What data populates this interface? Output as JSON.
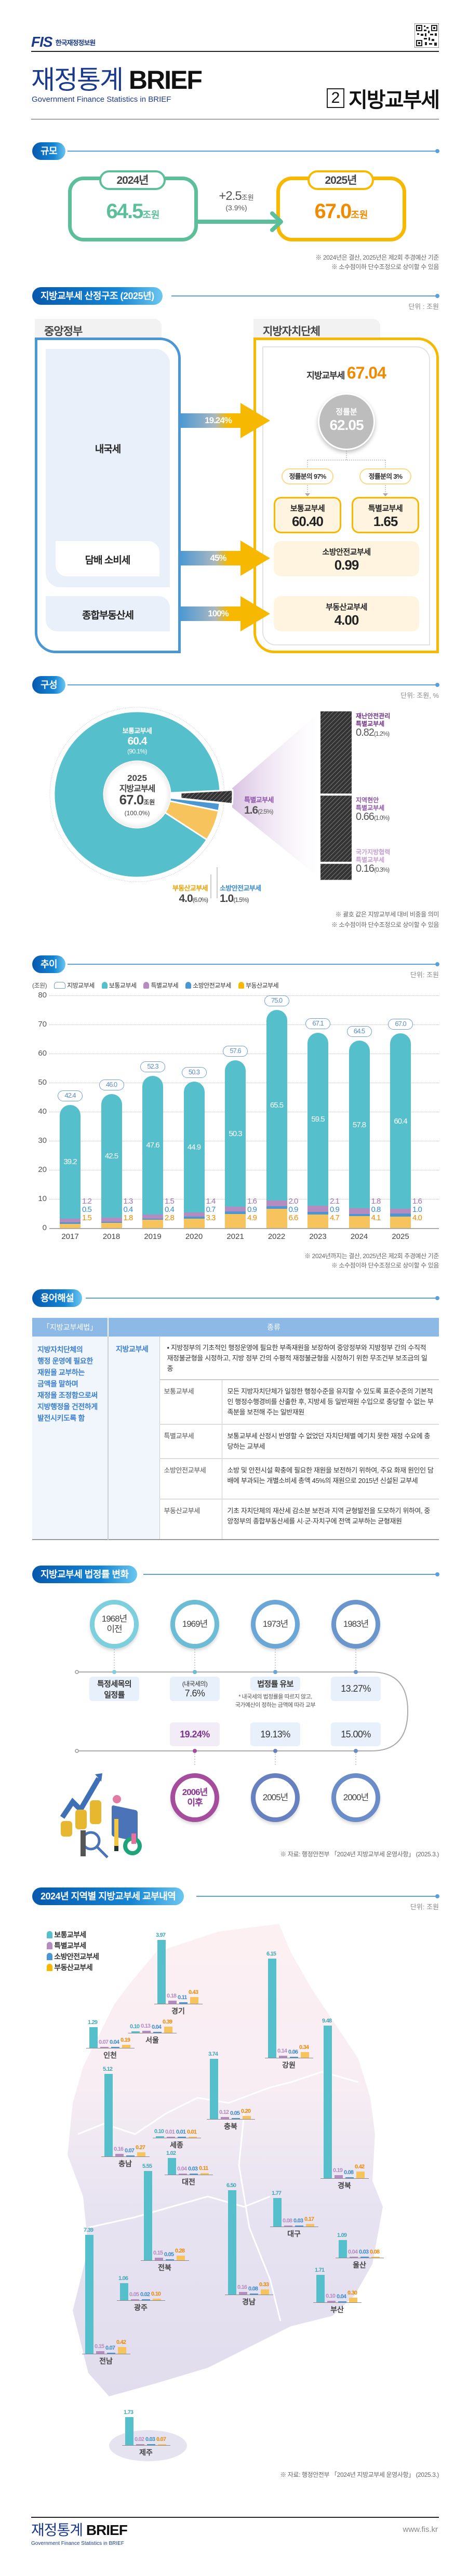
{
  "header": {
    "logo_text": "FIS",
    "org_name": "한국재정정보원",
    "title_kr": "재정통계",
    "title_en": "BRIEF",
    "subtitle": "Government Finance Statistics in BRIEF",
    "issue_no": "2",
    "topic": "지방교부세"
  },
  "scale": {
    "title": "규모",
    "before": {
      "year": "2024년",
      "value": "64.5",
      "unit": "조원"
    },
    "after": {
      "year": "2025년",
      "value": "67.0",
      "unit": "조원"
    },
    "change": "+2.5",
    "change_unit": "조원",
    "change_pct": "(3.9%)",
    "notes": [
      "※ 2024년은 결산, 2025년은 제2회 추경예산 기준",
      "※ 소수점이하 단수조정으로 상이할 수 있음"
    ]
  },
  "structure": {
    "title": "지방교부세 산정구조 (2025년)",
    "unit": "단위 : 조원",
    "central_label": "중앙정부",
    "local_label": "지방자치단체",
    "sources": [
      "내국세",
      "담배 소비세",
      "종합부동산세"
    ],
    "rates": [
      "19.24%",
      "45%",
      "100%"
    ],
    "total_label": "지방교부세",
    "total_value": "67.04",
    "pool_label": "정률분",
    "pool_value": "62.05",
    "splits": [
      "정률분의 97%",
      "정률분의 3%"
    ],
    "boxes": [
      {
        "label": "보통교부세",
        "value": "60.40"
      },
      {
        "label": "특별교부세",
        "value": "1.65"
      },
      {
        "label": "소방안전교부세",
        "value": "0.99"
      },
      {
        "label": "부동산교부세",
        "value": "4.00"
      }
    ]
  },
  "composition": {
    "title": "구성",
    "unit": "단위: 조원, %",
    "center": {
      "year": "2025",
      "label": "지방교부세",
      "value": "67.0",
      "unit": "조원",
      "pct": "(100.0%)"
    },
    "notes": [
      "※ 괄호 값은 지방교부세 대비 비중을 의미",
      "※ 소수점이하 단수조정으로 상이할 수 있음"
    ]
  },
  "trend": {
    "title": "추이",
    "unit": "단위: 조원",
    "notes": [
      "※ 2024년까지는 결산, 2025년은 제2회 추경예산 기준",
      "※ 소수점이하 단수조정으로 상이할 수 있음"
    ]
  },
  "glossary": {
    "title": "용어해설",
    "head_law": "「지방교부세법」",
    "head_kind": "종류",
    "law_text": "지방자치단체의\n행정 운영에 필요한\n재원을 교부하는\n금액을 말하며\n재정을 조정함으로써\n지방행정을 건전하게\n발전시키도록 함",
    "main_name": "지방교부세",
    "main_desc": "• 지방정부의 기초적인 행정운영에 필요한 부족재원을 보장하여 중앙정부와 지방정부 간의 수직적 재정불균형을 시정하고, 지방 정부 간의 수평적 재정불균형을 시정하기 위한 무조건부 보조금의 일종",
    "rows": [
      {
        "name": "보통교부세",
        "desc": "모든 지방자치단체가 일정한 행정수준을 유지할 수 있도록 표준수준의 기본적인 행정수행경비를 산출한 후, 지방세 등 일반재원 수입으로 충당할 수 없는 부족분을 보전해 주는 일반재원"
      },
      {
        "name": "특별교부세",
        "desc": "보통교부세 산정시 반영할 수 없었던 자치단체별 예기치 못한 재정 수요에 충당하는 교부세"
      },
      {
        "name": "소방안전교부세",
        "desc": "소방 및 안전시설 확충에 필요한 재원을 보전하기 위하여, 주요 화재 원인인 담배에 부과되는 개별소비세 총액 45%의 재원으로 2015년 신설된 교부세"
      },
      {
        "name": "부동산교부세",
        "desc": "기초 자치단체의 재산세 감소분 보전과 지역 균형발전을 도모하기 위하여, 중앙정부의 종합부동산세를 시·군·자치구에 전액 교부하는 균형재원"
      }
    ]
  },
  "timeline": {
    "title": "지방교부세 법정률 변화",
    "items": [
      {
        "year": "1968년\n이전",
        "rate": "특정세목의\n일정률"
      },
      {
        "year": "1969년",
        "rate_prefix": "(내국세의)",
        "rate": "7.6%"
      },
      {
        "year": "1973년",
        "rate": "법정률 유보",
        "note": "* 내국세의 법정률을 따르지 않고,\n국가예산이 정하는 금액에 따라 교부"
      },
      {
        "year": "1983년",
        "rate": "13.27%"
      },
      {
        "year": "2000년",
        "rate": "15.00%"
      },
      {
        "year": "2005년",
        "rate": "19.13%"
      },
      {
        "year": "2006년\n이후",
        "rate": "19.24%"
      }
    ],
    "source": "※ 자료: 행정안전부 「2024년 지방교부세 운영사항」 (2025.3.)"
  },
  "regional": {
    "title": "2024년 지역별 지방교부세 교부내역",
    "unit": "단위: 조원",
    "source": "※ 자료: 행정안전부 「2024년 지방교부세 운영사항」 (2025.3.)"
  },
  "colors": {
    "normal": "#55c0cc",
    "special": "#b58cc0",
    "fire": "#4a97d4",
    "property": "#f7c35c",
    "property_text": "#f08a00",
    "green": "#5bbf9a",
    "orange": "#f6b800"
  },
  "chart_data": [
    {
      "type": "bar",
      "stacked": true,
      "yaxis_unit": "(조원)",
      "ylim": [
        0,
        80
      ],
      "yticks": [
        0,
        10,
        20,
        30,
        40,
        50,
        60,
        70,
        80
      ],
      "grid": true,
      "legend_position": "top-left",
      "categories": [
        "2017",
        "2018",
        "2019",
        "2020",
        "2021",
        "2022",
        "2023",
        "2024",
        "2025"
      ],
      "total_name": "지방교부세",
      "totals": [
        42.4,
        46.0,
        52.3,
        50.3,
        57.6,
        75.0,
        67.1,
        64.5,
        67.0
      ],
      "series": [
        {
          "name": "보통교부세",
          "values": [
            39.2,
            42.5,
            47.6,
            44.9,
            50.3,
            65.5,
            59.5,
            57.8,
            60.4
          ]
        },
        {
          "name": "특별교부세",
          "values": [
            1.2,
            1.3,
            1.5,
            1.4,
            1.6,
            2.0,
            2.1,
            1.8,
            1.6
          ]
        },
        {
          "name": "소방안전교부세",
          "values": [
            0.5,
            0.4,
            0.4,
            0.7,
            0.9,
            0.9,
            0.9,
            0.8,
            1.0
          ]
        },
        {
          "name": "부동산교부세",
          "values": [
            1.5,
            1.8,
            2.8,
            3.3,
            4.9,
            6.6,
            4.7,
            4.1,
            4.0
          ]
        }
      ]
    },
    {
      "type": "pie",
      "slices": [
        {
          "name": "보통교부세",
          "value": "60.4",
          "pct": "(90.1%)"
        },
        {
          "name": "특별교부세",
          "value": "1.6",
          "pct": "(2.5%)"
        },
        {
          "name": "소방안전교부세",
          "value": "1.0",
          "pct": "(1.5%)"
        },
        {
          "name": "부동산교부세",
          "value": "4.0",
          "pct": "(6.0%)"
        }
      ],
      "pct_values": [
        90.1,
        2.5,
        1.5,
        6.0
      ],
      "breakdown": [
        {
          "name": "재난안전관리\n특별교부세",
          "value": "0.82",
          "pct": "(1.2%)"
        },
        {
          "name": "지역현안\n특별교부세",
          "value": "0.66",
          "pct": "(1.0%)"
        },
        {
          "name": "국가지방협력\n특별교부세",
          "value": "0.16",
          "pct": "(0.3%)"
        }
      ]
    },
    {
      "type": "bar",
      "series_names": [
        "보통교부세",
        "특별교부세",
        "소방안전교부세",
        "부동산교부세"
      ],
      "regions": [
        {
          "name": "서울",
          "values": [
            0.1,
            0.13,
            0.04,
            0.39
          ]
        },
        {
          "name": "인천",
          "values": [
            1.29,
            0.07,
            0.04,
            0.19
          ]
        },
        {
          "name": "경기",
          "values": [
            3.97,
            0.18,
            0.11,
            0.43
          ]
        },
        {
          "name": "강원",
          "values": [
            6.15,
            0.14,
            0.06,
            0.34
          ]
        },
        {
          "name": "충북",
          "values": [
            3.74,
            0.12,
            0.05,
            0.2
          ]
        },
        {
          "name": "충남",
          "values": [
            5.12,
            0.16,
            0.07,
            0.27
          ]
        },
        {
          "name": "세종",
          "values": [
            0.1,
            0.01,
            0.01,
            0.01
          ]
        },
        {
          "name": "대전",
          "values": [
            1.02,
            0.04,
            0.03,
            0.11
          ]
        },
        {
          "name": "경북",
          "values": [
            9.48,
            0.19,
            0.08,
            0.42
          ]
        },
        {
          "name": "전북",
          "values": [
            5.55,
            0.15,
            0.05,
            0.28
          ]
        },
        {
          "name": "대구",
          "values": [
            1.77,
            0.08,
            0.03,
            0.17
          ]
        },
        {
          "name": "경남",
          "values": [
            6.5,
            0.16,
            0.08,
            0.33
          ]
        },
        {
          "name": "울산",
          "values": [
            1.09,
            0.04,
            0.03,
            0.08
          ]
        },
        {
          "name": "광주",
          "values": [
            1.06,
            0.05,
            0.02,
            0.1
          ]
        },
        {
          "name": "부산",
          "values": [
            1.71,
            0.1,
            0.04,
            0.3
          ]
        },
        {
          "name": "전남",
          "values": [
            7.39,
            0.15,
            0.07,
            0.42
          ]
        },
        {
          "name": "제주",
          "values": [
            1.73,
            0.02,
            0.03,
            0.07
          ]
        }
      ]
    }
  ],
  "footer": {
    "title_kr": "재정통계",
    "title_en": "BRIEF",
    "subtitle": "Government Finance Statistics in BRIEF",
    "url": "www.fis.kr"
  }
}
